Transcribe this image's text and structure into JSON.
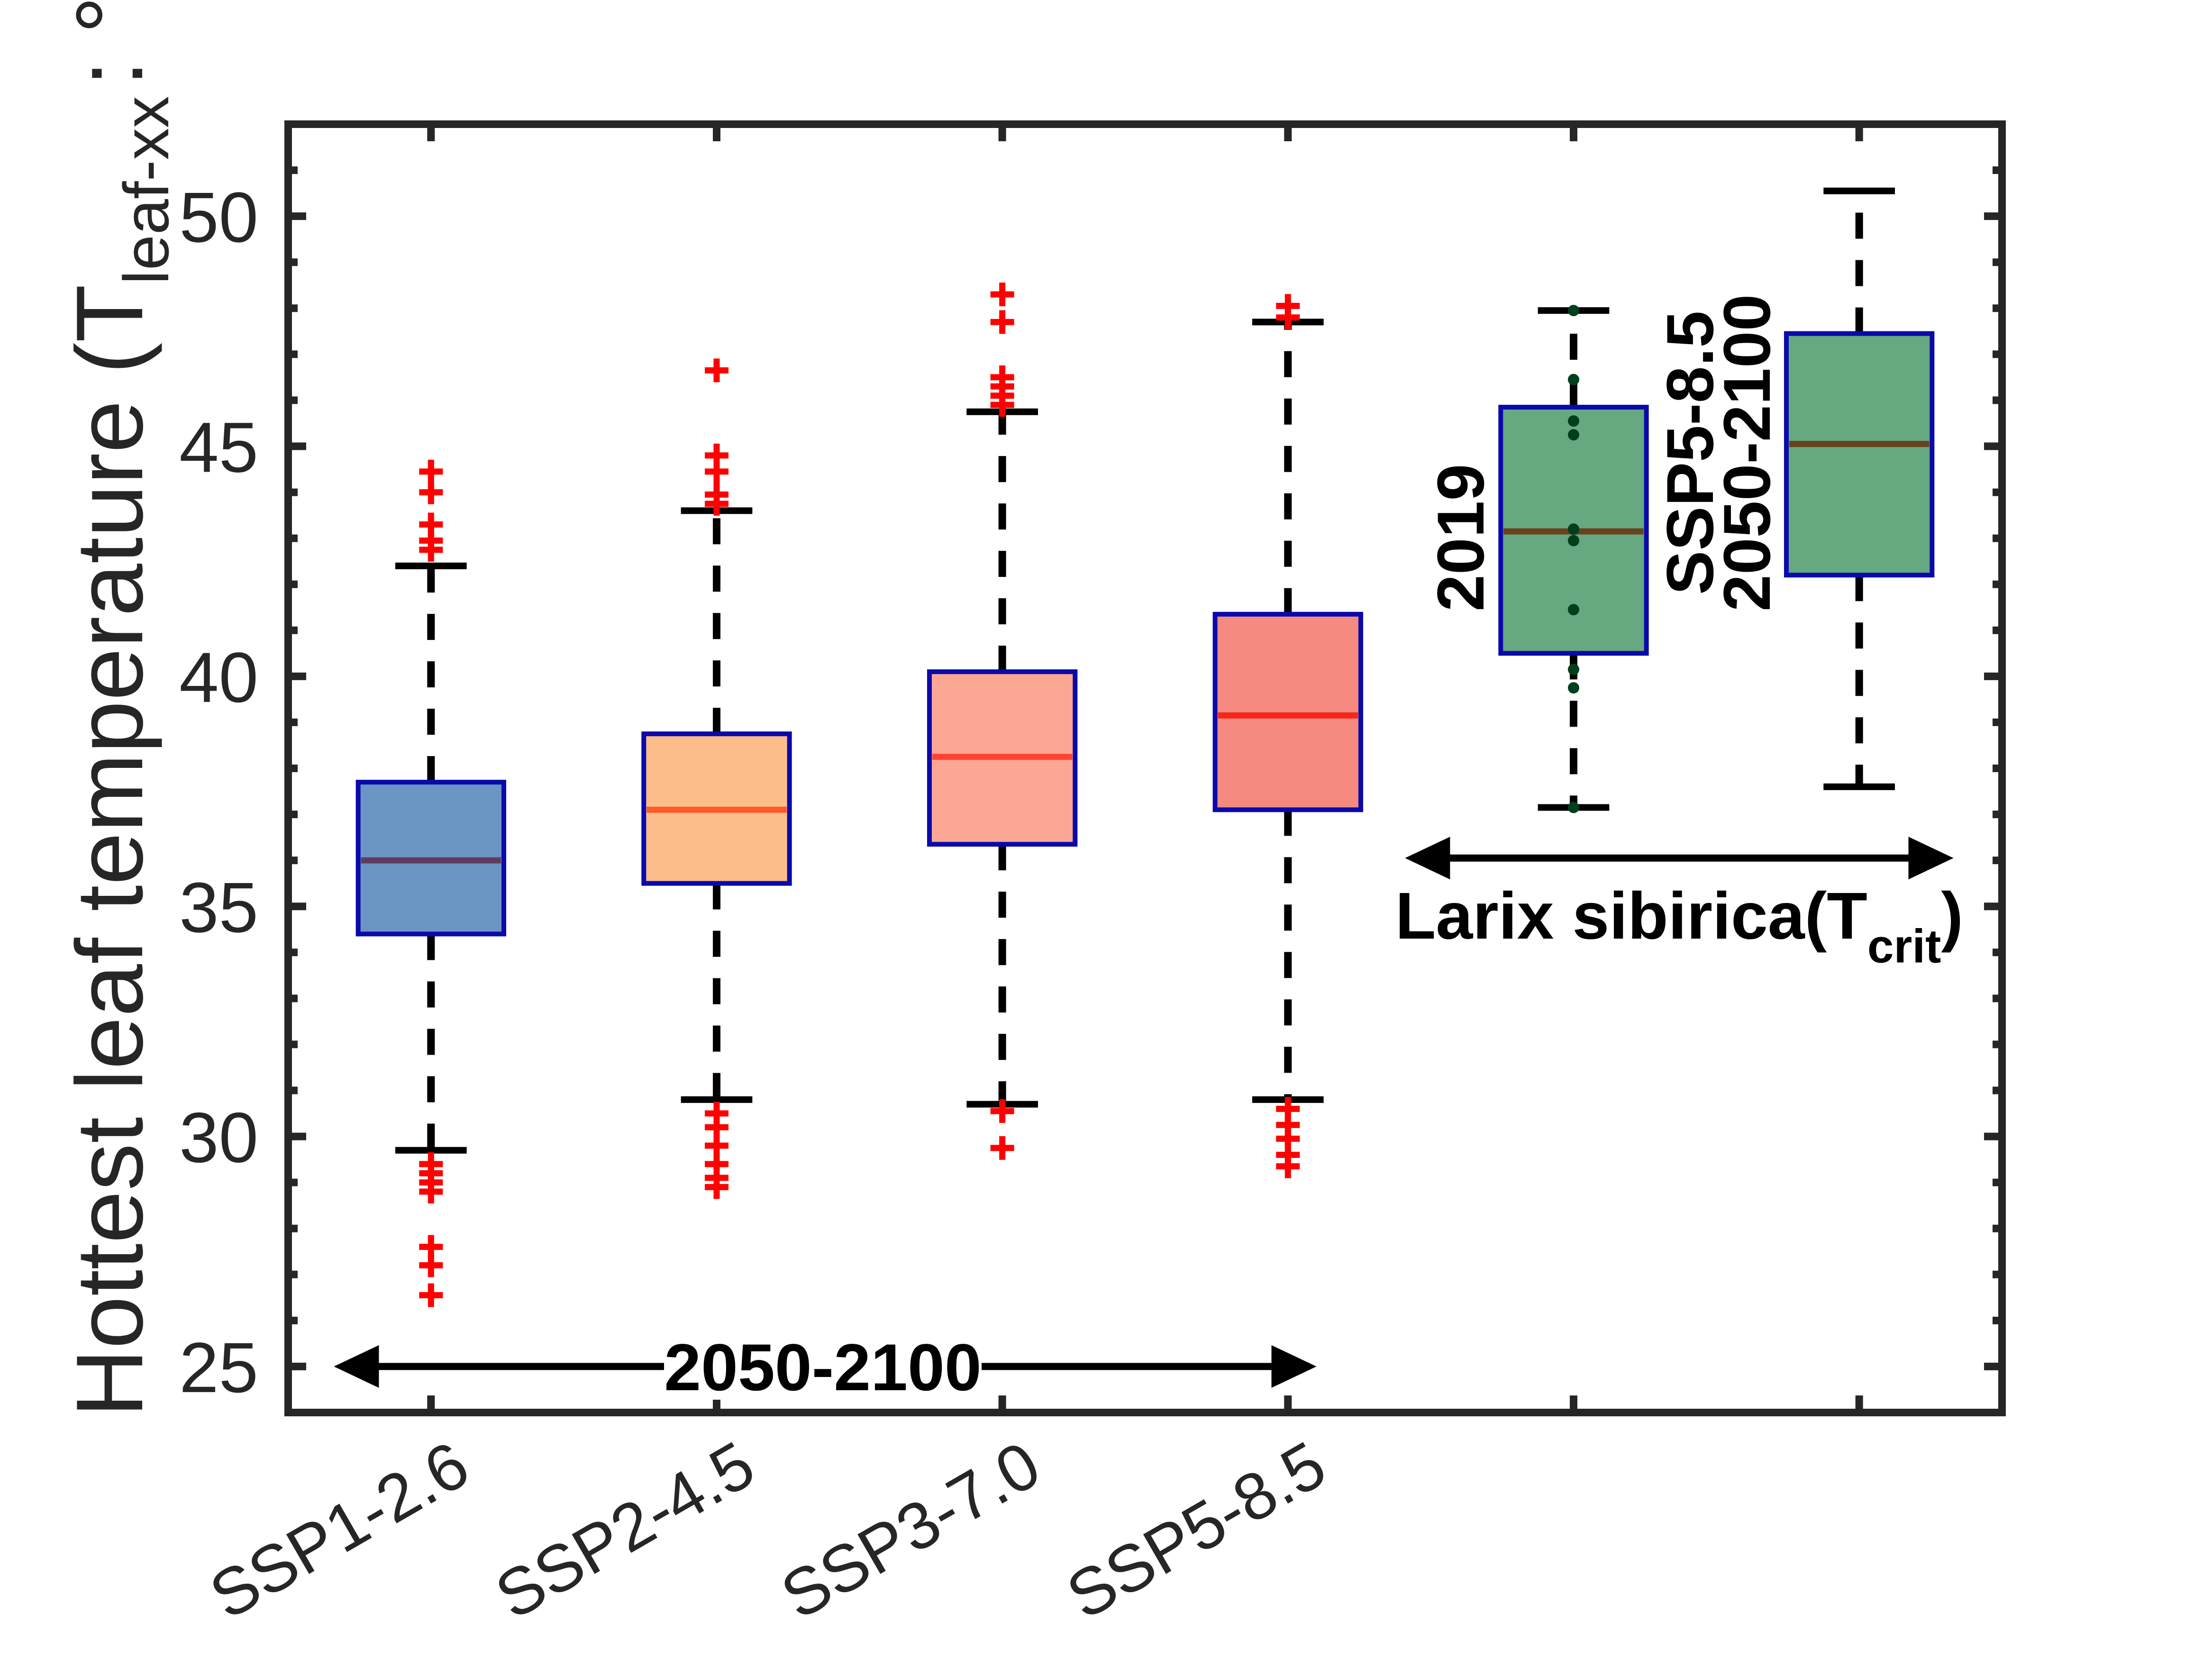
{
  "chart_data": {
    "type": "box",
    "ylabel": {
      "prefix": "Hottest leaf temperature (T",
      "subscript": "leaf-xx",
      "suffix": ": °C)"
    },
    "ylim": [
      24,
      52
    ],
    "xlim": [
      0.5,
      6.5
    ],
    "yticks": [
      25,
      30,
      35,
      40,
      45,
      50
    ],
    "ytick_labels": [
      "25",
      "30",
      "35",
      "40",
      "45",
      "50"
    ],
    "y_minor_step": 1,
    "grid": false,
    "xticks": [
      1,
      2,
      3,
      4,
      5,
      6
    ],
    "xtick_labels": [
      "SSP1-2.6",
      "SSP2-4.5",
      "SSP3-7.0",
      "SSP5-8.5",
      "",
      ""
    ],
    "boxes": [
      {
        "name": "SSP1-2.6",
        "x": 1,
        "lower_whisker": 29.7,
        "q1": 34.4,
        "median": 36.0,
        "q3": 37.7,
        "upper_whisker": 42.4,
        "outliers": [
          44.45,
          44.0,
          43.3,
          42.95,
          42.75,
          29.4,
          29.2,
          29.0,
          28.8,
          27.6,
          27.2,
          26.55
        ],
        "fill": "#6B96C3",
        "median_color": "#5E3B63",
        "points": []
      },
      {
        "name": "SSP2-4.5",
        "x": 2,
        "lower_whisker": 30.8,
        "q1": 35.5,
        "median": 37.1,
        "q3": 38.75,
        "upper_whisker": 43.6,
        "outliers": [
          46.65,
          44.8,
          44.45,
          43.95,
          43.75,
          30.5,
          30.2,
          29.8,
          29.4,
          29.1,
          28.9
        ],
        "fill": "#FCBD8B",
        "median_color": "#FF5A2A",
        "points": []
      },
      {
        "name": "SSP3-7.0",
        "x": 3,
        "lower_whisker": 30.7,
        "q1": 36.35,
        "median": 38.25,
        "q3": 40.1,
        "upper_whisker": 45.75,
        "outliers": [
          48.3,
          47.7,
          46.5,
          46.3,
          46.1,
          45.9,
          30.55,
          29.75
        ],
        "fill": "#FBA793",
        "median_color": "#FF4433",
        "points": []
      },
      {
        "name": "SSP5-8.5",
        "x": 4,
        "lower_whisker": 30.8,
        "q1": 37.1,
        "median": 39.15,
        "q3": 41.35,
        "upper_whisker": 47.7,
        "outliers": [
          48.05,
          47.8,
          30.6,
          30.25,
          29.95,
          29.6,
          29.35
        ],
        "fill": "#F48A80",
        "median_color": "#F8261A",
        "points": []
      },
      {
        "name": "Larix sibirica 2019",
        "x": 5,
        "lower_whisker": 37.15,
        "q1": 40.5,
        "median": 43.15,
        "q3": 45.85,
        "upper_whisker": 47.95,
        "outliers": [],
        "points": [
          47.95,
          46.45,
          45.55,
          45.25,
          43.2,
          42.95,
          41.45,
          40.15,
          39.75,
          37.15
        ],
        "fill": "#66A880",
        "median_color": "#66431F"
      },
      {
        "name": "Larix sibirica SSP5-8.5 2050-2100",
        "x": 6,
        "lower_whisker": 37.6,
        "q1": 42.2,
        "median": 45.05,
        "q3": 47.45,
        "upper_whisker": 50.55,
        "outliers": [],
        "points": [],
        "fill": "#66A880",
        "median_color": "#66431F"
      }
    ],
    "box_edge_color": "#0A0AAA",
    "outlier_color": "#FF0000",
    "point_color": "#003F1C",
    "annotations": {
      "period_arrow": {
        "label": "2050-2100",
        "x_from": 0.66,
        "x_to": 4.1,
        "y": 25
      },
      "larix_arrow": {
        "label_prefix": "Larix sibirica(T",
        "label_subscript": "crit",
        "label_suffix": ")",
        "x_from": 4.41,
        "x_to": 6.33,
        "y": 36.05
      },
      "box5_label": "2019",
      "box6_label_line1": "SSP5-8.5",
      "box6_label_line2": "2050-2100"
    }
  }
}
